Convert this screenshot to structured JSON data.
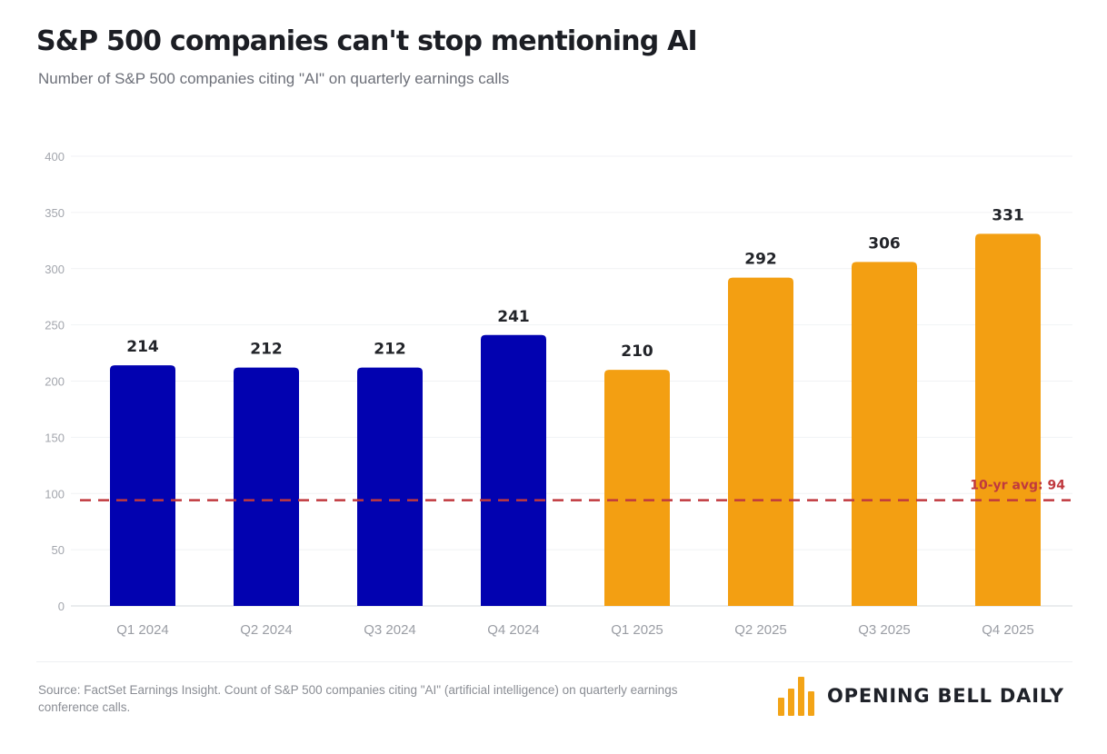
{
  "header": {
    "title": "S&P 500 companies can't stop mentioning AI",
    "subtitle": "Number of S&P 500 companies citing \"AI\" on quarterly earnings calls"
  },
  "chart_data": {
    "type": "bar",
    "title": "S&P 500 companies can't stop mentioning AI",
    "subtitle": "Number of S&P 500 companies citing \"AI\" on quarterly earnings calls",
    "xlabel": "",
    "ylabel": "",
    "categories": [
      "Q1 2024",
      "Q2 2024",
      "Q3 2024",
      "Q4 2024",
      "Q1 2025",
      "Q2 2025",
      "Q3 2025",
      "Q4 2025"
    ],
    "values": [
      214,
      212,
      212,
      241,
      210,
      292,
      306,
      331
    ],
    "series": [
      {
        "name": "2024",
        "color": "#0202b0",
        "categories": [
          "Q1 2024",
          "Q2 2024",
          "Q3 2024",
          "Q4 2024"
        ],
        "values": [
          214,
          212,
          212,
          241
        ]
      },
      {
        "name": "2025",
        "color": "#f39f12",
        "categories": [
          "Q1 2025",
          "Q2 2025",
          "Q3 2025",
          "Q4 2025"
        ],
        "values": [
          210,
          292,
          306,
          331
        ]
      }
    ],
    "ylim": [
      0,
      400
    ],
    "yticks": [
      0,
      50,
      100,
      150,
      200,
      250,
      300,
      350,
      400
    ],
    "grid": true,
    "legend": "none",
    "data_labels": true,
    "reference_line": {
      "value": 94,
      "label": "10-yr avg: 94",
      "color": "#c0393e",
      "style": "dashed"
    }
  },
  "footer": {
    "source": "Source: FactSet Earnings Insight. Count of S&P 500 companies citing \"AI\" (artificial intelligence) on quarterly earnings conference calls.",
    "brand": "OPENING BELL DAILY",
    "brand_icon": "bar-chart-logo-icon",
    "brand_color": "#f3a417"
  }
}
